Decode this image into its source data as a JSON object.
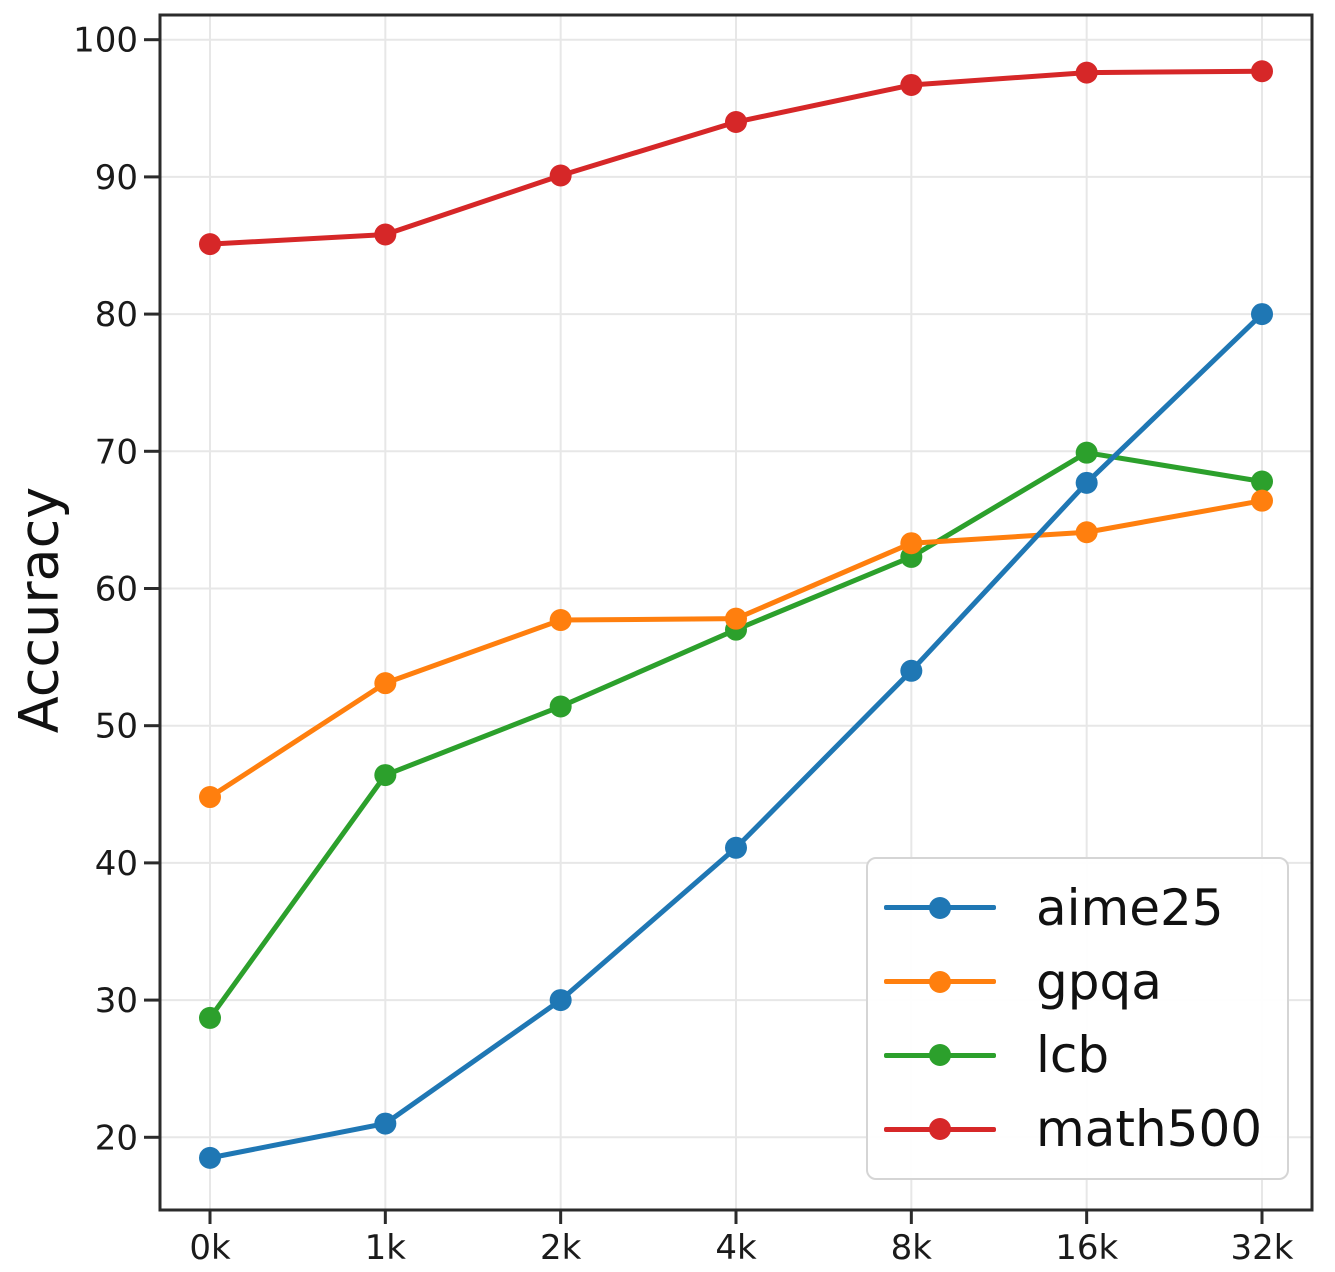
{
  "figure": {
    "background": "#ffffff"
  },
  "chart_data": {
    "type": "line",
    "title": "",
    "xlabel": "",
    "ylabel": "Accuracy",
    "x_categories": [
      "0k",
      "1k",
      "2k",
      "4k",
      "8k",
      "16k",
      "32k"
    ],
    "series": [
      {
        "name": "aime25",
        "color": "#1f77b4",
        "values": [
          18.5,
          21.0,
          30.0,
          41.1,
          54.0,
          67.7,
          80.0
        ]
      },
      {
        "name": "gpqa",
        "color": "#ff7f0e",
        "values": [
          44.8,
          53.1,
          57.7,
          57.8,
          63.3,
          64.1,
          66.4
        ]
      },
      {
        "name": "lcb",
        "color": "#2ca02c",
        "values": [
          28.7,
          46.4,
          51.4,
          57.0,
          62.3,
          69.9,
          67.8
        ]
      },
      {
        "name": "math500",
        "color": "#d62728",
        "values": [
          85.1,
          85.8,
          90.1,
          94.0,
          96.7,
          97.6,
          97.7
        ]
      }
    ],
    "draw_order": [
      "lcb",
      "gpqa",
      "aime25",
      "math500"
    ],
    "yticks": [
      20,
      30,
      40,
      50,
      60,
      70,
      80,
      90,
      100
    ],
    "ylim": [
      14.7,
      101.8
    ],
    "grid": true,
    "legend_position": "lower right",
    "styles": {
      "grid_color": "#e7e7e7",
      "axis_color": "#2b2b2b",
      "text_color": "#1a1a1a",
      "line_width": 5,
      "marker_radius": 11
    }
  }
}
